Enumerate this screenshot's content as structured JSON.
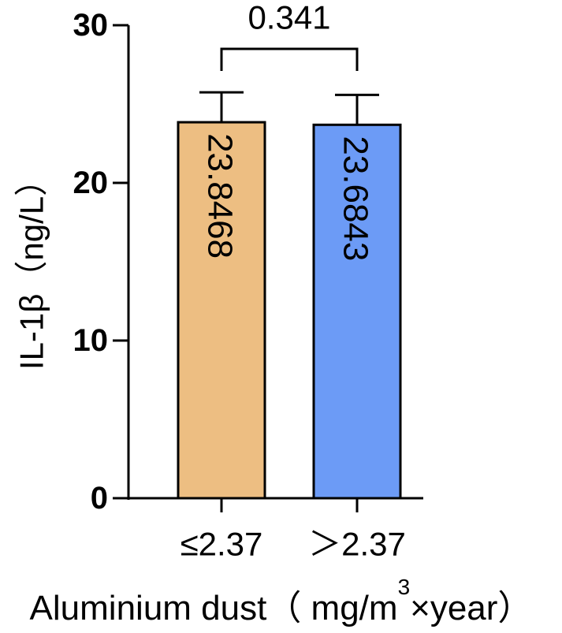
{
  "chart_data": {
    "type": "bar",
    "categories": [
      "≤2.37",
      "＞2.37"
    ],
    "values": [
      23.8468,
      23.6843
    ],
    "value_labels": [
      "23.8468",
      "23.6843"
    ],
    "errors": [
      1.9,
      1.9
    ],
    "colors": [
      "#EDBE82",
      "#6C9BF6"
    ],
    "ylabel": "IL-1β（ng/L）",
    "xlabel": {
      "prefix": "Aluminium dust（ mg/m",
      "superscript": "3",
      "suffix": "×year）"
    },
    "ylim": [
      0,
      30
    ],
    "yticks": [
      0,
      10,
      20,
      30
    ],
    "comparison": {
      "label": "0.341",
      "between": [
        0,
        1
      ]
    },
    "grid": false,
    "legend": "none"
  }
}
